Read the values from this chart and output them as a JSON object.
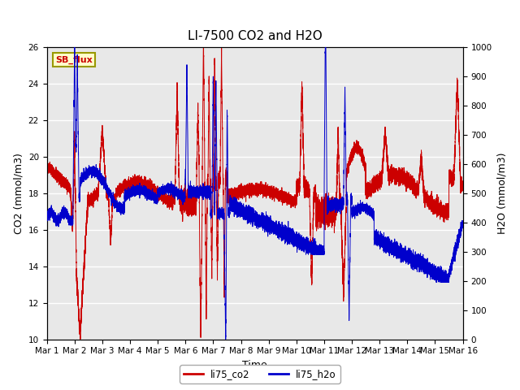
{
  "title": "LI-7500 CO2 and H2O",
  "xlabel": "Time",
  "ylabel_left": "CO2 (mmol/m3)",
  "ylabel_right": "H2O (mmol/m3)",
  "ylim_left": [
    10,
    26
  ],
  "ylim_right": [
    0,
    1000
  ],
  "xlim": [
    0,
    15
  ],
  "xtick_labels": [
    "Mar 1",
    "Mar 2",
    "Mar 3",
    "Mar 4",
    "Mar 5",
    "Mar 6",
    "Mar 7",
    "Mar 8",
    "Mar 9",
    "Mar 10",
    "Mar 11",
    "Mar 12",
    "Mar 13",
    "Mar 14",
    "Mar 15",
    "Mar 16"
  ],
  "xtick_positions": [
    0,
    1,
    2,
    3,
    4,
    5,
    6,
    7,
    8,
    9,
    10,
    11,
    12,
    13,
    14,
    15
  ],
  "bg_color": "#e8e8e8",
  "fig_bg_color": "#ffffff",
  "co2_color": "#cc0000",
  "h2o_color": "#0000cc",
  "line_width": 0.7,
  "label_box_text": "SB_flux",
  "label_box_bg": "#ffffcc",
  "label_box_edge": "#999900",
  "legend_co2": "li75_co2",
  "legend_h2o": "li75_h2o",
  "title_fontsize": 11,
  "axis_label_fontsize": 9,
  "tick_fontsize": 7.5,
  "yticks_left": [
    10,
    12,
    14,
    16,
    18,
    20,
    22,
    24,
    26
  ],
  "yticks_right": [
    0,
    100,
    200,
    300,
    400,
    500,
    600,
    700,
    800,
    900,
    1000
  ]
}
